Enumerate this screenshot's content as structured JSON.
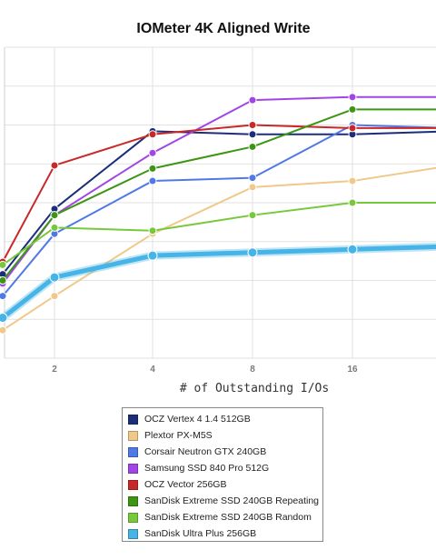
{
  "chart_data": {
    "type": "line",
    "title": "IOMeter 4K Aligned Write",
    "xlabel": "# of Outstanding I/Os",
    "x": [
      1,
      2,
      4,
      8,
      16,
      32
    ],
    "x_tick_labels": [
      "",
      "2",
      "4",
      "8",
      "16",
      ""
    ],
    "ylim": [
      0,
      100
    ],
    "grid": true,
    "legend_position": "bottom",
    "series": [
      {
        "name": "OCZ Vertex 4 1.4 512GB",
        "color": "#1a2e7a",
        "width": 2,
        "values": [
          27,
          48,
          73,
          72,
          72,
          73
        ]
      },
      {
        "name": "Plextor PX-M5S",
        "color": "#f0c88a",
        "width": 2,
        "values": [
          9,
          20,
          40,
          55,
          57,
          62
        ]
      },
      {
        "name": "Corsair Neutron GTX 240GB",
        "color": "#5078e6",
        "width": 2,
        "values": [
          20,
          40,
          57,
          58,
          75,
          74
        ]
      },
      {
        "name": "Samsung SSD 840 Pro 512G",
        "color": "#a046e6",
        "width": 2,
        "values": [
          24,
          46,
          66,
          83,
          84,
          84
        ]
      },
      {
        "name": "OCZ Vector 256GB",
        "color": "#c82828",
        "width": 2,
        "values": [
          31,
          62,
          72,
          75,
          74,
          74
        ]
      },
      {
        "name": "SanDisk Extreme SSD 240GB Repeating",
        "color": "#3c9614",
        "width": 2,
        "values": [
          25,
          46,
          61,
          68,
          80,
          80
        ]
      },
      {
        "name": "SanDisk Extreme SSD 240GB Random",
        "color": "#78c83c",
        "width": 2,
        "values": [
          30,
          42,
          41,
          46,
          50,
          50
        ]
      },
      {
        "name": "SanDisk Ultra Plus 256GB",
        "color": "#46b4e6",
        "width": 5,
        "values": [
          13,
          26,
          33,
          34,
          35,
          36
        ]
      }
    ]
  }
}
